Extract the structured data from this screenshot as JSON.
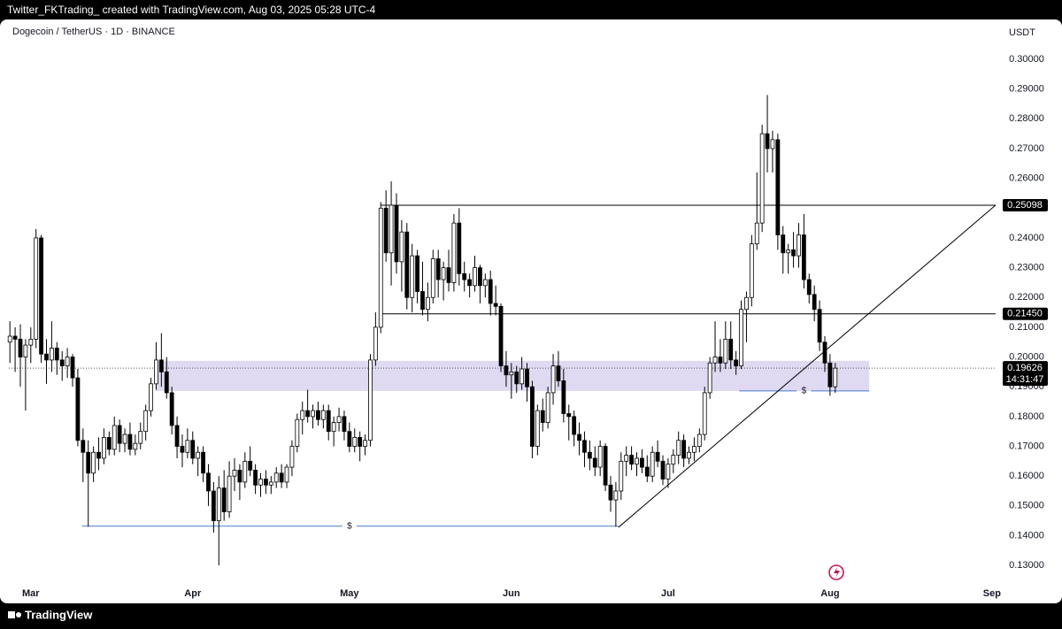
{
  "header": {
    "caption": "Twitter_FKTrading_ created with TradingView.com, Aug 03, 2025 05:28 UTC-4",
    "brand": "TradingView"
  },
  "chart_data": {
    "type": "candlestick",
    "title": "Dogecoin / TetherUS · 1D · BINANCE",
    "y_axis_label": "USDT",
    "xlim": [
      -4.2,
      184.7
    ],
    "ylim": [
      0.1238,
      0.311
    ],
    "xticks": [
      {
        "value": 0,
        "label": "Mar"
      },
      {
        "value": 31,
        "label": "Apr"
      },
      {
        "value": 61,
        "label": "May"
      },
      {
        "value": 92,
        "label": "Jun"
      },
      {
        "value": 122,
        "label": "Jul"
      },
      {
        "value": 153,
        "label": "Aug"
      },
      {
        "value": 184,
        "label": "Sep"
      }
    ],
    "yticks": [
      {
        "value": 0.13,
        "label": "0.13000"
      },
      {
        "value": 0.14,
        "label": "0.14000"
      },
      {
        "value": 0.15,
        "label": "0.15000"
      },
      {
        "value": 0.16,
        "label": "0.16000"
      },
      {
        "value": 0.17,
        "label": "0.17000"
      },
      {
        "value": 0.18,
        "label": "0.18000"
      },
      {
        "value": 0.19,
        "label": "0.19000"
      },
      {
        "value": 0.2,
        "label": "0.20000"
      },
      {
        "value": 0.21,
        "label": "0.21000"
      },
      {
        "value": 0.22,
        "label": "0.22000"
      },
      {
        "value": 0.23,
        "label": "0.23000"
      },
      {
        "value": 0.24,
        "label": "0.24000"
      },
      {
        "value": 0.25,
        "label": "0.25000"
      },
      {
        "value": 0.26,
        "label": "0.26000"
      },
      {
        "value": 0.27,
        "label": "0.27000"
      },
      {
        "value": 0.28,
        "label": "0.28000"
      },
      {
        "value": 0.29,
        "label": "0.29000"
      },
      {
        "value": 0.3,
        "label": "0.30000"
      }
    ],
    "up_color": "#ffffff",
    "down_color": "#000000",
    "edge_color": "#000000",
    "x": [
      -4,
      -3,
      -2,
      -1,
      0,
      1,
      2,
      3,
      4,
      5,
      6,
      7,
      8,
      9,
      10,
      11,
      12,
      13,
      14,
      15,
      16,
      17,
      18,
      19,
      20,
      21,
      22,
      23,
      24,
      25,
      26,
      27,
      28,
      29,
      30,
      31,
      32,
      33,
      34,
      35,
      36,
      37,
      38,
      39,
      40,
      41,
      42,
      43,
      44,
      45,
      46,
      47,
      48,
      49,
      50,
      51,
      52,
      53,
      54,
      55,
      56,
      57,
      58,
      59,
      60,
      61,
      62,
      63,
      64,
      65,
      66,
      67,
      68,
      69,
      70,
      71,
      72,
      73,
      74,
      75,
      76,
      77,
      78,
      79,
      80,
      81,
      82,
      83,
      84,
      85,
      86,
      87,
      88,
      89,
      90,
      91,
      92,
      93,
      94,
      95,
      96,
      97,
      98,
      99,
      100,
      101,
      102,
      103,
      104,
      105,
      106,
      107,
      108,
      109,
      110,
      111,
      112,
      113,
      114,
      115,
      116,
      117,
      118,
      119,
      120,
      121,
      122,
      123,
      124,
      125,
      126,
      127,
      128,
      129,
      130,
      131,
      132,
      133,
      134,
      135,
      136,
      137,
      138,
      139,
      140,
      141,
      142,
      143,
      144,
      145,
      146,
      147,
      148,
      149,
      150,
      151,
      152,
      153,
      154
    ],
    "candles": [
      [
        0.205,
        0.212,
        0.198,
        0.207
      ],
      [
        0.207,
        0.21,
        0.195,
        0.206
      ],
      [
        0.206,
        0.211,
        0.19,
        0.2
      ],
      [
        0.2,
        0.206,
        0.182,
        0.204
      ],
      [
        0.204,
        0.21,
        0.198,
        0.206
      ],
      [
        0.206,
        0.243,
        0.203,
        0.24
      ],
      [
        0.24,
        0.241,
        0.198,
        0.201
      ],
      [
        0.201,
        0.206,
        0.191,
        0.199
      ],
      [
        0.199,
        0.212,
        0.195,
        0.203
      ],
      [
        0.203,
        0.205,
        0.194,
        0.199
      ],
      [
        0.199,
        0.202,
        0.192,
        0.197
      ],
      [
        0.197,
        0.203,
        0.193,
        0.2
      ],
      [
        0.2,
        0.201,
        0.19,
        0.193
      ],
      [
        0.193,
        0.196,
        0.17,
        0.172
      ],
      [
        0.172,
        0.176,
        0.158,
        0.168
      ],
      [
        0.168,
        0.172,
        0.143,
        0.161
      ],
      [
        0.161,
        0.17,
        0.158,
        0.168
      ],
      [
        0.168,
        0.173,
        0.162,
        0.166
      ],
      [
        0.166,
        0.176,
        0.164,
        0.173
      ],
      [
        0.173,
        0.175,
        0.167,
        0.169
      ],
      [
        0.169,
        0.18,
        0.167,
        0.177
      ],
      [
        0.177,
        0.179,
        0.168,
        0.171
      ],
      [
        0.171,
        0.176,
        0.168,
        0.174
      ],
      [
        0.174,
        0.178,
        0.167,
        0.169
      ],
      [
        0.169,
        0.174,
        0.167,
        0.171
      ],
      [
        0.171,
        0.178,
        0.169,
        0.175
      ],
      [
        0.175,
        0.184,
        0.172,
        0.182
      ],
      [
        0.182,
        0.193,
        0.18,
        0.191
      ],
      [
        0.191,
        0.205,
        0.189,
        0.199
      ],
      [
        0.199,
        0.208,
        0.19,
        0.195
      ],
      [
        0.195,
        0.2,
        0.186,
        0.188
      ],
      [
        0.188,
        0.19,
        0.174,
        0.177
      ],
      [
        0.177,
        0.18,
        0.166,
        0.17
      ],
      [
        0.17,
        0.174,
        0.163,
        0.168
      ],
      [
        0.168,
        0.176,
        0.166,
        0.172
      ],
      [
        0.172,
        0.175,
        0.164,
        0.166
      ],
      [
        0.166,
        0.17,
        0.16,
        0.168
      ],
      [
        0.168,
        0.17,
        0.158,
        0.161
      ],
      [
        0.161,
        0.164,
        0.15,
        0.155
      ],
      [
        0.155,
        0.158,
        0.141,
        0.145
      ],
      [
        0.145,
        0.16,
        0.13,
        0.156
      ],
      [
        0.156,
        0.162,
        0.145,
        0.148
      ],
      [
        0.148,
        0.165,
        0.146,
        0.16
      ],
      [
        0.16,
        0.166,
        0.155,
        0.162
      ],
      [
        0.162,
        0.164,
        0.152,
        0.158
      ],
      [
        0.158,
        0.168,
        0.156,
        0.165
      ],
      [
        0.165,
        0.17,
        0.16,
        0.162
      ],
      [
        0.162,
        0.164,
        0.154,
        0.157
      ],
      [
        0.157,
        0.161,
        0.153,
        0.159
      ],
      [
        0.159,
        0.162,
        0.154,
        0.157
      ],
      [
        0.157,
        0.16,
        0.154,
        0.158
      ],
      [
        0.158,
        0.163,
        0.156,
        0.161
      ],
      [
        0.161,
        0.164,
        0.156,
        0.158
      ],
      [
        0.158,
        0.164,
        0.156,
        0.163
      ],
      [
        0.163,
        0.172,
        0.16,
        0.17
      ],
      [
        0.17,
        0.181,
        0.168,
        0.179
      ],
      [
        0.179,
        0.185,
        0.174,
        0.182
      ],
      [
        0.182,
        0.189,
        0.178,
        0.18
      ],
      [
        0.18,
        0.184,
        0.176,
        0.182
      ],
      [
        0.182,
        0.185,
        0.177,
        0.179
      ],
      [
        0.179,
        0.184,
        0.176,
        0.182
      ],
      [
        0.182,
        0.184,
        0.172,
        0.175
      ],
      [
        0.175,
        0.18,
        0.17,
        0.178
      ],
      [
        0.178,
        0.183,
        0.175,
        0.18
      ],
      [
        0.18,
        0.182,
        0.172,
        0.175
      ],
      [
        0.175,
        0.178,
        0.168,
        0.17
      ],
      [
        0.17,
        0.176,
        0.168,
        0.173
      ],
      [
        0.173,
        0.175,
        0.165,
        0.17
      ],
      [
        0.17,
        0.174,
        0.167,
        0.172
      ],
      [
        0.172,
        0.201,
        0.17,
        0.199
      ],
      [
        0.199,
        0.215,
        0.197,
        0.21
      ],
      [
        0.21,
        0.252,
        0.208,
        0.25
      ],
      [
        0.25,
        0.256,
        0.232,
        0.235
      ],
      [
        0.235,
        0.259,
        0.224,
        0.251
      ],
      [
        0.251,
        0.255,
        0.228,
        0.232
      ],
      [
        0.232,
        0.246,
        0.222,
        0.242
      ],
      [
        0.242,
        0.245,
        0.216,
        0.22
      ],
      [
        0.22,
        0.238,
        0.215,
        0.234
      ],
      [
        0.234,
        0.236,
        0.218,
        0.222
      ],
      [
        0.222,
        0.232,
        0.214,
        0.216
      ],
      [
        0.216,
        0.225,
        0.212,
        0.22
      ],
      [
        0.22,
        0.236,
        0.218,
        0.233
      ],
      [
        0.233,
        0.236,
        0.22,
        0.226
      ],
      [
        0.226,
        0.232,
        0.219,
        0.23
      ],
      [
        0.23,
        0.236,
        0.222,
        0.225
      ],
      [
        0.225,
        0.248,
        0.222,
        0.245
      ],
      [
        0.245,
        0.25,
        0.224,
        0.228
      ],
      [
        0.228,
        0.232,
        0.222,
        0.226
      ],
      [
        0.226,
        0.228,
        0.22,
        0.224
      ],
      [
        0.224,
        0.234,
        0.222,
        0.23
      ],
      [
        0.23,
        0.231,
        0.218,
        0.224
      ],
      [
        0.224,
        0.228,
        0.22,
        0.226
      ],
      [
        0.226,
        0.229,
        0.214,
        0.218
      ],
      [
        0.218,
        0.224,
        0.214,
        0.217
      ],
      [
        0.217,
        0.218,
        0.195,
        0.197
      ],
      [
        0.197,
        0.202,
        0.19,
        0.194
      ],
      [
        0.194,
        0.198,
        0.186,
        0.195
      ],
      [
        0.195,
        0.197,
        0.188,
        0.191
      ],
      [
        0.191,
        0.2,
        0.189,
        0.196
      ],
      [
        0.196,
        0.198,
        0.185,
        0.19
      ],
      [
        0.19,
        0.192,
        0.166,
        0.17
      ],
      [
        0.17,
        0.184,
        0.167,
        0.182
      ],
      [
        0.182,
        0.186,
        0.175,
        0.178
      ],
      [
        0.178,
        0.19,
        0.176,
        0.188
      ],
      [
        0.188,
        0.201,
        0.184,
        0.197
      ],
      [
        0.197,
        0.202,
        0.19,
        0.192
      ],
      [
        0.192,
        0.196,
        0.178,
        0.181
      ],
      [
        0.181,
        0.184,
        0.172,
        0.18
      ],
      [
        0.18,
        0.182,
        0.17,
        0.174
      ],
      [
        0.174,
        0.178,
        0.167,
        0.172
      ],
      [
        0.172,
        0.175,
        0.163,
        0.168
      ],
      [
        0.168,
        0.172,
        0.162,
        0.166
      ],
      [
        0.166,
        0.17,
        0.16,
        0.163
      ],
      [
        0.163,
        0.172,
        0.16,
        0.17
      ],
      [
        0.17,
        0.171,
        0.155,
        0.157
      ],
      [
        0.157,
        0.16,
        0.148,
        0.152
      ],
      [
        0.152,
        0.158,
        0.143,
        0.155
      ],
      [
        0.155,
        0.168,
        0.152,
        0.165
      ],
      [
        0.165,
        0.17,
        0.16,
        0.167
      ],
      [
        0.167,
        0.17,
        0.162,
        0.164
      ],
      [
        0.164,
        0.168,
        0.16,
        0.166
      ],
      [
        0.166,
        0.169,
        0.161,
        0.163
      ],
      [
        0.163,
        0.167,
        0.158,
        0.16
      ],
      [
        0.16,
        0.17,
        0.158,
        0.168
      ],
      [
        0.168,
        0.172,
        0.163,
        0.165
      ],
      [
        0.165,
        0.167,
        0.157,
        0.159
      ],
      [
        0.159,
        0.166,
        0.156,
        0.164
      ],
      [
        0.164,
        0.169,
        0.161,
        0.167
      ],
      [
        0.167,
        0.175,
        0.164,
        0.172
      ],
      [
        0.172,
        0.174,
        0.163,
        0.166
      ],
      [
        0.166,
        0.17,
        0.164,
        0.168
      ],
      [
        0.168,
        0.173,
        0.165,
        0.17
      ],
      [
        0.17,
        0.176,
        0.168,
        0.174
      ],
      [
        0.174,
        0.19,
        0.172,
        0.188
      ],
      [
        0.188,
        0.2,
        0.186,
        0.198
      ],
      [
        0.198,
        0.212,
        0.195,
        0.2
      ],
      [
        0.2,
        0.206,
        0.195,
        0.198
      ],
      [
        0.198,
        0.212,
        0.196,
        0.206
      ],
      [
        0.206,
        0.212,
        0.196,
        0.199
      ],
      [
        0.199,
        0.202,
        0.194,
        0.197
      ],
      [
        0.197,
        0.219,
        0.196,
        0.216
      ],
      [
        0.216,
        0.222,
        0.205,
        0.22
      ],
      [
        0.22,
        0.241,
        0.217,
        0.238
      ],
      [
        0.238,
        0.262,
        0.236,
        0.245
      ],
      [
        0.245,
        0.278,
        0.242,
        0.275
      ],
      [
        0.275,
        0.288,
        0.262,
        0.27
      ],
      [
        0.27,
        0.276,
        0.262,
        0.273
      ],
      [
        0.273,
        0.275,
        0.236,
        0.241
      ],
      [
        0.241,
        0.244,
        0.228,
        0.235
      ],
      [
        0.235,
        0.238,
        0.228,
        0.236
      ],
      [
        0.236,
        0.242,
        0.23,
        0.234
      ],
      [
        0.234,
        0.245,
        0.23,
        0.241
      ],
      [
        0.241,
        0.248,
        0.223,
        0.226
      ],
      [
        0.226,
        0.228,
        0.218,
        0.221
      ],
      [
        0.221,
        0.224,
        0.212,
        0.216
      ],
      [
        0.216,
        0.219,
        0.202,
        0.205
      ],
      [
        0.205,
        0.207,
        0.195,
        0.198
      ],
      [
        0.198,
        0.201,
        0.187,
        0.19
      ],
      [
        0.19,
        0.198,
        0.188,
        0.19626
      ]
    ],
    "levels": [
      {
        "value": 0.25098,
        "label": "0.25098",
        "start": 67
      },
      {
        "value": 0.2145,
        "label": "0.21450",
        "start": 67
      }
    ],
    "last_price": {
      "value": 0.19626,
      "label": "0.19626",
      "countdown": "14:31:47"
    },
    "trendline": {
      "x": [
        112.5,
        184.7
      ],
      "y": [
        0.1428,
        0.251
      ]
    },
    "zone": {
      "x": [
        23.9,
        160.5
      ],
      "y": [
        0.1886,
        0.1987
      ],
      "color": "#d9d2f0"
    },
    "liquidity_lines": [
      {
        "x": [
          9.8,
          112.5
        ],
        "y": 0.1432,
        "label": "$",
        "label_x": 61
      },
      {
        "x": [
          135.6,
          160.5
        ],
        "y": 0.1886,
        "label": "$",
        "label_x": 148
      }
    ]
  }
}
